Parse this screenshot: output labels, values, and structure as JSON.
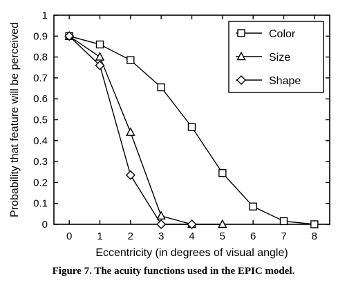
{
  "caption": "Figure 7. The acuity functions used in the EPIC model.",
  "chart_data": {
    "type": "line",
    "xlabel": "Eccentricity (in degrees of visual angle)",
    "ylabel": "Probability that feature will be perceived",
    "xlim": [
      -0.5,
      8.5
    ],
    "ylim": [
      0,
      1
    ],
    "x_ticks": [
      0,
      1,
      2,
      3,
      4,
      5,
      6,
      7,
      8
    ],
    "y_ticks": [
      0,
      0.1,
      0.2,
      0.3,
      0.4,
      0.5,
      0.6,
      0.7,
      0.8,
      0.9,
      1
    ],
    "y_tick_labels": [
      "0",
      "0.1",
      "0.2",
      "0.3",
      "0.4",
      "0.5",
      "0.6",
      "0.7",
      "0.8",
      "0.9",
      "1"
    ],
    "grid": false,
    "legend_position": "top-right",
    "series": [
      {
        "name": "Color",
        "marker": "square",
        "x": [
          0,
          1,
          2,
          3,
          4,
          5,
          6,
          7,
          8
        ],
        "y": [
          0.9,
          0.86,
          0.785,
          0.655,
          0.465,
          0.245,
          0.085,
          0.015,
          0.0
        ]
      },
      {
        "name": "Size",
        "marker": "triangle",
        "x": [
          0,
          1,
          2,
          3,
          4,
          5
        ],
        "y": [
          0.9,
          0.8,
          0.44,
          0.04,
          0.0,
          0.0
        ]
      },
      {
        "name": "Shape",
        "marker": "diamond",
        "x": [
          0,
          1,
          2,
          3,
          4
        ],
        "y": [
          0.9,
          0.76,
          0.235,
          0.0,
          0.0
        ]
      }
    ]
  }
}
